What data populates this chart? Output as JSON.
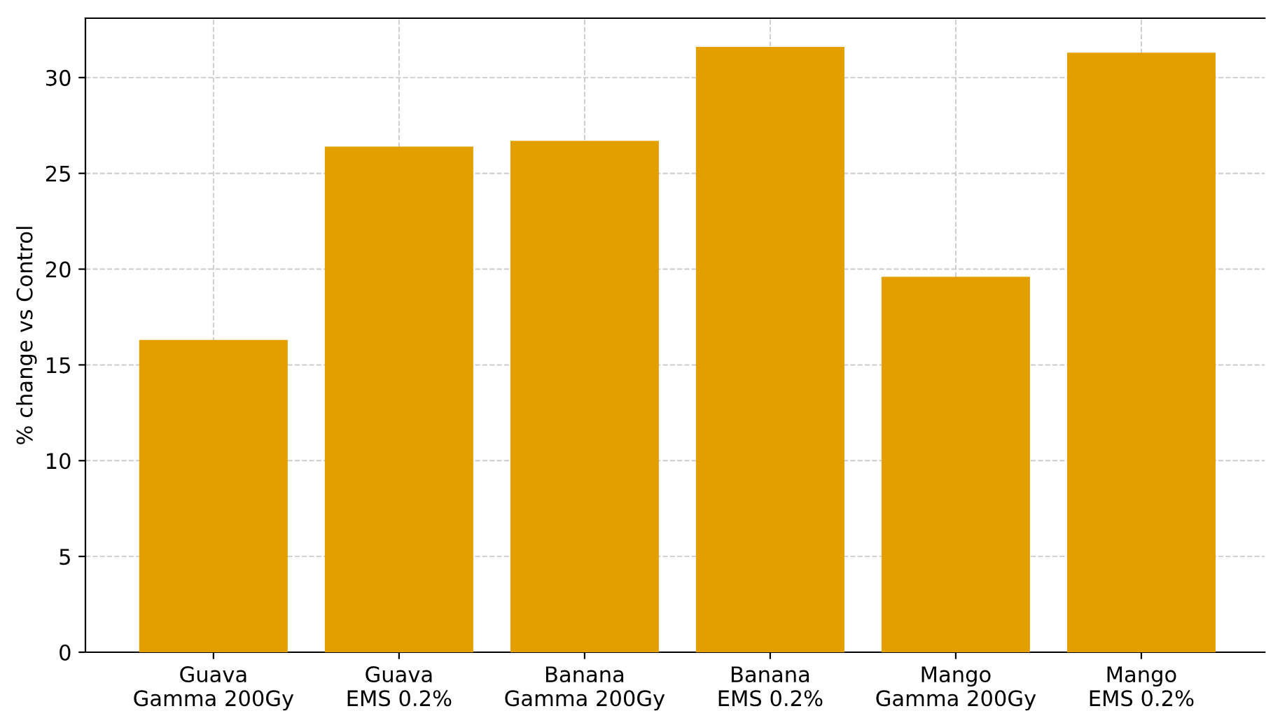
{
  "chart_data": {
    "type": "bar",
    "ylabel": "% change vs Control",
    "categories": [
      "Guava\nGamma 200Gy",
      "Guava\nEMS 0.2%",
      "Banana\nGamma 200Gy",
      "Banana\nEMS 0.2%",
      "Mango\nGamma 200Gy",
      "Mango\nEMS 0.2%"
    ],
    "values": [
      16.3,
      26.4,
      26.7,
      31.6,
      19.6,
      31.3
    ],
    "color": "#e39f00",
    "ylim": [
      0,
      33.1
    ],
    "yticks": [
      0,
      5,
      10,
      15,
      20,
      25,
      30
    ],
    "grid": true
  }
}
